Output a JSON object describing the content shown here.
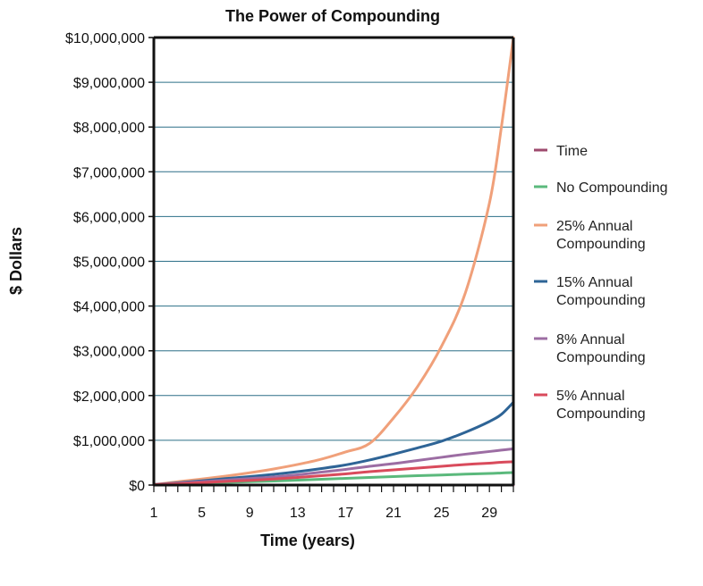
{
  "chart_data": {
    "type": "line",
    "title": "The Power of Compounding",
    "xlabel": "Time (years)",
    "ylabel": "$ Dollars",
    "xlim": [
      1,
      31
    ],
    "ylim": [
      0,
      10000000
    ],
    "x_ticks": [
      1,
      5,
      9,
      13,
      17,
      21,
      25,
      29
    ],
    "y_ticks": [
      {
        "value": 0,
        "label": "$0"
      },
      {
        "value": 1000000,
        "label": "$1,000,000"
      },
      {
        "value": 2000000,
        "label": "$2,000,000"
      },
      {
        "value": 3000000,
        "label": "$3,000,000"
      },
      {
        "value": 4000000,
        "label": "$4,000,000"
      },
      {
        "value": 5000000,
        "label": "$5,000,000"
      },
      {
        "value": 6000000,
        "label": "$6,000,000"
      },
      {
        "value": 7000000,
        "label": "$7,000,000"
      },
      {
        "value": 8000000,
        "label": "$8,000,000"
      },
      {
        "value": 9000000,
        "label": "$9,000,000"
      },
      {
        "value": 10000000,
        "label": "$10,000,000"
      }
    ],
    "grid": true,
    "legend": "right",
    "x": [
      1,
      3,
      5,
      7,
      9,
      11,
      13,
      15,
      17,
      19,
      21,
      23,
      25,
      27,
      29,
      30,
      31
    ],
    "series": [
      {
        "name": "Time",
        "color": "#9e4a6e",
        "values": [
          0,
          0,
          0,
          0,
          0,
          0,
          0,
          0,
          0,
          0,
          0,
          0,
          0,
          0,
          0,
          0,
          0
        ]
      },
      {
        "name": "No Compounding",
        "color": "#5bb97c",
        "values": [
          10000,
          25000,
          45000,
          60000,
          75000,
          90000,
          110000,
          130000,
          150000,
          170000,
          190000,
          210000,
          225000,
          245000,
          260000,
          270000,
          280000
        ]
      },
      {
        "name": "25% Annual Compounding",
        "color": "#f0a07a",
        "values": [
          10000,
          75000,
          135000,
          200000,
          275000,
          360000,
          460000,
          580000,
          740000,
          930000,
          1500000,
          2200000,
          3100000,
          4300000,
          6300000,
          8000000,
          10000000
        ]
      },
      {
        "name": "15% Annual Compounding",
        "color": "#2e6496",
        "values": [
          10000,
          50000,
          95000,
          145000,
          190000,
          240000,
          300000,
          370000,
          450000,
          560000,
          690000,
          830000,
          980000,
          1180000,
          1420000,
          1580000,
          1850000
        ]
      },
      {
        "name": "8% Annual Compounding",
        "color": "#9c6da3",
        "values": [
          10000,
          40000,
          75000,
          110000,
          145000,
          180000,
          230000,
          290000,
          350000,
          420000,
          480000,
          550000,
          620000,
          690000,
          750000,
          780000,
          810000
        ]
      },
      {
        "name": "5% Annual Compounding",
        "color": "#d94b5c",
        "values": [
          10000,
          30000,
          55000,
          80000,
          105000,
          135000,
          170000,
          210000,
          250000,
          300000,
          340000,
          380000,
          420000,
          460000,
          490000,
          510000,
          520000
        ]
      }
    ],
    "legend_entries": [
      {
        "line1": "Time",
        "line2": ""
      },
      {
        "line1": "No Compounding",
        "line2": ""
      },
      {
        "line1": "25% Annual",
        "line2": "Compounding"
      },
      {
        "line1": "15% Annual",
        "line2": "Compounding"
      },
      {
        "line1": "8% Annual",
        "line2": "Compounding"
      },
      {
        "line1": "5% Annual",
        "line2": "Compounding"
      }
    ],
    "colors": {
      "axis": "#111111",
      "grid": "#2b6f87"
    }
  }
}
